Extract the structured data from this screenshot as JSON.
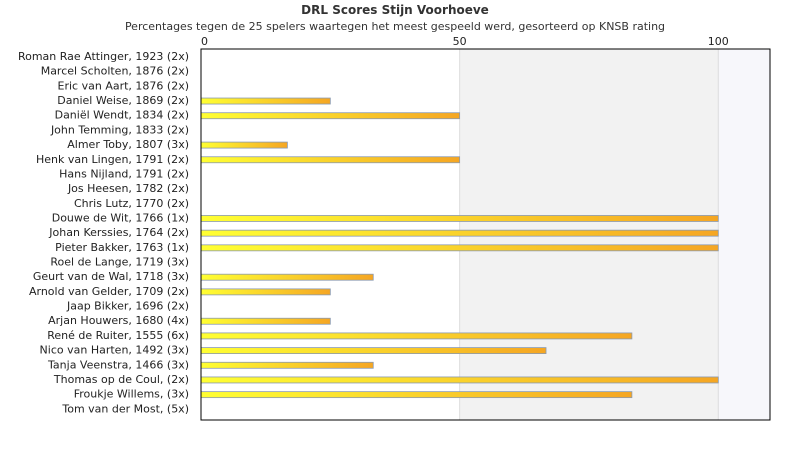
{
  "chart_data": {
    "type": "bar",
    "orientation": "horizontal",
    "title": "DRL Scores Stijn Voorhoeve",
    "subtitle": "Percentages tegen de 25 spelers waartegen het meest gespeeld werd, gesorteerd op KNSB rating",
    "xlim": [
      0,
      110
    ],
    "xticks": [
      0,
      50,
      100
    ],
    "grid": true,
    "categories": [
      "Roman Rae Attinger, 1923 (2x)",
      "Marcel Scholten, 1876 (2x)",
      "Eric van Aart, 1876 (2x)",
      "Daniel Weise, 1869 (2x)",
      "Daniël Wendt, 1834 (2x)",
      "John Temming, 1833 (2x)",
      "Almer Toby, 1807 (3x)",
      "Henk van Lingen, 1791 (2x)",
      "Hans Nijland, 1791 (2x)",
      "Jos Heesen, 1782 (2x)",
      "Chris Lutz, 1770 (2x)",
      "Douwe de Wit, 1766 (1x)",
      "Johan Kerssies, 1764 (2x)",
      "Pieter Bakker, 1763 (1x)",
      "Roel de Lange, 1719 (3x)",
      "Geurt van de Wal, 1718 (3x)",
      "Arnold van Gelder, 1709 (2x)",
      "Jaap Bikker, 1696 (2x)",
      "Arjan Houwers, 1680 (4x)",
      "René de Ruiter, 1555 (6x)",
      "Nico van Harten, 1492 (3x)",
      "Tanja Veenstra, 1466 (3x)",
      "Thomas op de Coul,  (2x)",
      "Froukje Willems,  (3x)",
      "Tom van der Most,  (5x)"
    ],
    "values": [
      0,
      0,
      0,
      25,
      50,
      0,
      16.7,
      50,
      0,
      0,
      0,
      100,
      100,
      100,
      0,
      33.3,
      25,
      0,
      25,
      83.3,
      66.7,
      33.3,
      100,
      83.3,
      0
    ],
    "colors": {
      "bar_start": "#ffff33",
      "bar_end": "#f5a623",
      "bar_stroke": "#8a9ab0",
      "band": "#f2f2f2",
      "band_light": "#f7f7fb",
      "grid": "#dddddd",
      "axis": "#000000"
    }
  }
}
